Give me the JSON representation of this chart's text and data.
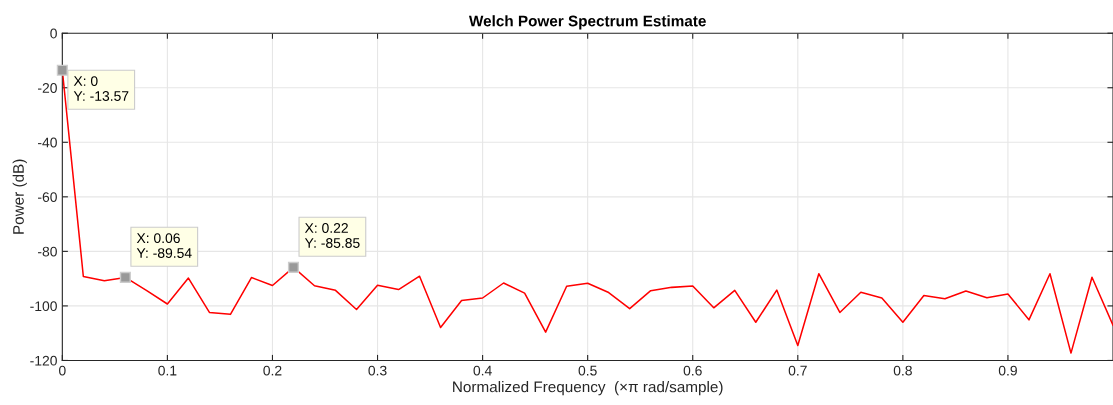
{
  "chart_data": {
    "type": "line",
    "title": "Welch Power Spectrum Estimate",
    "xlabel": "Normalized Frequency  (×π rad/sample)",
    "ylabel": "Power (dB)",
    "x": [
      0,
      0.02,
      0.04,
      0.06,
      0.08,
      0.1,
      0.12,
      0.14,
      0.16,
      0.18,
      0.2,
      0.22,
      0.24,
      0.26,
      0.28,
      0.3,
      0.32,
      0.34,
      0.36,
      0.38,
      0.4,
      0.42,
      0.44,
      0.46,
      0.48,
      0.5,
      0.52,
      0.54,
      0.56,
      0.58,
      0.6,
      0.62,
      0.64,
      0.66,
      0.68,
      0.7,
      0.72,
      0.74,
      0.76,
      0.78,
      0.8,
      0.82,
      0.84,
      0.86,
      0.88,
      0.9,
      0.92,
      0.94,
      0.96,
      0.98,
      1.0
    ],
    "series": [
      {
        "color": "#ff0000",
        "values": [
          -13.57,
          -89.2,
          -90.8,
          -89.54,
          -94.3,
          -99.3,
          -89.8,
          -102.4,
          -103.1,
          -89.6,
          -92.5,
          -85.85,
          -92.6,
          -94.3,
          -101.3,
          -92.4,
          -94.0,
          -89.1,
          -107.9,
          -98.0,
          -97.1,
          -91.6,
          -95.3,
          -109.6,
          -92.8,
          -91.7,
          -95.1,
          -101.0,
          -94.4,
          -93.2,
          -92.7,
          -100.7,
          -94.3,
          -106.0,
          -94.2,
          -114.5,
          -88.2,
          -102.4,
          -95.0,
          -97.1,
          -106.0,
          -96.2,
          -97.4,
          -94.5,
          -97.0,
          -95.6,
          -105.1,
          -88.2,
          -117.3,
          -89.5,
          -107.1
        ]
      }
    ],
    "annotations": [
      {
        "text": "X: 0\nY: -13.57",
        "x": 0,
        "y": -13.57
      },
      {
        "text": "X: 0.06\nY: -89.54",
        "x": 0.06,
        "y": -89.54
      },
      {
        "text": "X: 0.22\nY: -85.85",
        "x": 0.22,
        "y": -85.85
      }
    ],
    "xlim": [
      0,
      1
    ],
    "ylim": [
      -120,
      0
    ],
    "xticks": [
      0,
      0.1,
      0.2,
      0.3,
      0.4,
      0.5,
      0.6,
      0.7,
      0.8,
      0.9
    ],
    "yticks": [
      -120,
      -100,
      -80,
      -60,
      -40,
      -20,
      0
    ],
    "grid": true,
    "line_style": "solid",
    "marker": "none"
  }
}
